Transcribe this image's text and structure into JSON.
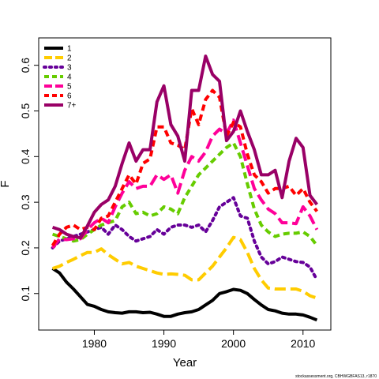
{
  "credit": "stockassessment.org, CBHWGBFAS13, r1870",
  "chart_data": {
    "type": "line",
    "xlabel": "Year",
    "ylabel": "F",
    "xlim": [
      1972,
      2014
    ],
    "ylim": [
      0.02,
      0.66
    ],
    "xticks": [
      1980,
      1990,
      2000,
      2010
    ],
    "yticks": [
      0.1,
      0.2,
      0.3,
      0.4,
      0.5,
      0.6
    ],
    "grid": false,
    "legend_position": "top-left",
    "x": [
      1974,
      1975,
      1976,
      1977,
      1978,
      1979,
      1980,
      1981,
      1982,
      1983,
      1984,
      1985,
      1986,
      1987,
      1988,
      1989,
      1990,
      1991,
      1992,
      1993,
      1994,
      1995,
      1996,
      1997,
      1998,
      1999,
      2000,
      2001,
      2002,
      2003,
      2004,
      2005,
      2006,
      2007,
      2008,
      2009,
      2010,
      2011,
      2012
    ],
    "series": [
      {
        "name": "1",
        "color": "#000000",
        "dash": "solid",
        "values": [
          0.155,
          0.145,
          0.125,
          0.11,
          0.093,
          0.076,
          0.072,
          0.065,
          0.06,
          0.058,
          0.057,
          0.06,
          0.06,
          0.058,
          0.059,
          0.055,
          0.05,
          0.05,
          0.055,
          0.058,
          0.06,
          0.065,
          0.075,
          0.085,
          0.1,
          0.104,
          0.109,
          0.107,
          0.1,
          0.087,
          0.075,
          0.065,
          0.062,
          0.057,
          0.055,
          0.055,
          0.053,
          0.048,
          0.042
        ]
      },
      {
        "name": "2",
        "color": "#ffcc00",
        "dash": "long",
        "values": [
          0.155,
          0.16,
          0.168,
          0.175,
          0.183,
          0.19,
          0.19,
          0.198,
          0.185,
          0.175,
          0.165,
          0.168,
          0.16,
          0.155,
          0.15,
          0.145,
          0.142,
          0.143,
          0.142,
          0.14,
          0.13,
          0.13,
          0.145,
          0.16,
          0.18,
          0.2,
          0.223,
          0.218,
          0.19,
          0.155,
          0.13,
          0.112,
          0.11,
          0.11,
          0.11,
          0.11,
          0.105,
          0.095,
          0.09
        ]
      },
      {
        "name": "3",
        "color": "#660099",
        "dash": "dot",
        "values": [
          0.2,
          0.215,
          0.22,
          0.225,
          0.23,
          0.235,
          0.24,
          0.245,
          0.23,
          0.25,
          0.24,
          0.225,
          0.215,
          0.22,
          0.225,
          0.24,
          0.23,
          0.245,
          0.25,
          0.25,
          0.245,
          0.25,
          0.235,
          0.26,
          0.29,
          0.3,
          0.31,
          0.27,
          0.265,
          0.215,
          0.18,
          0.165,
          0.17,
          0.18,
          0.175,
          0.17,
          0.168,
          0.158,
          0.13
        ]
      },
      {
        "name": "4",
        "color": "#66cc00",
        "dash": "dash",
        "values": [
          0.23,
          0.225,
          0.22,
          0.215,
          0.218,
          0.23,
          0.24,
          0.25,
          0.255,
          0.26,
          0.29,
          0.3,
          0.275,
          0.278,
          0.27,
          0.275,
          0.29,
          0.285,
          0.275,
          0.31,
          0.335,
          0.36,
          0.375,
          0.39,
          0.405,
          0.42,
          0.43,
          0.4,
          0.34,
          0.285,
          0.25,
          0.235,
          0.225,
          0.23,
          0.232,
          0.232,
          0.235,
          0.225,
          0.205
        ]
      },
      {
        "name": "5",
        "color": "#ff0099",
        "dash": "long",
        "values": [
          0.2,
          0.22,
          0.218,
          0.22,
          0.22,
          0.24,
          0.255,
          0.265,
          0.255,
          0.29,
          0.32,
          0.345,
          0.33,
          0.335,
          0.335,
          0.36,
          0.35,
          0.36,
          0.32,
          0.37,
          0.4,
          0.39,
          0.41,
          0.445,
          0.46,
          0.45,
          0.48,
          0.43,
          0.38,
          0.33,
          0.305,
          0.285,
          0.275,
          0.255,
          0.255,
          0.253,
          0.29,
          0.27,
          0.24
        ]
      },
      {
        "name": "6",
        "color": "#ff0000",
        "dash": "dash",
        "values": [
          0.205,
          0.23,
          0.245,
          0.25,
          0.24,
          0.245,
          0.24,
          0.265,
          0.27,
          0.3,
          0.33,
          0.36,
          0.34,
          0.385,
          0.395,
          0.465,
          0.465,
          0.43,
          0.425,
          0.415,
          0.505,
          0.47,
          0.525,
          0.545,
          0.53,
          0.445,
          0.475,
          0.465,
          0.405,
          0.36,
          0.345,
          0.32,
          0.33,
          0.33,
          0.335,
          0.315,
          0.33,
          0.3,
          0.28
        ]
      },
      {
        "name": "7+",
        "color": "#990066",
        "dash": "solid",
        "values": [
          0.245,
          0.24,
          0.23,
          0.225,
          0.222,
          0.248,
          0.278,
          0.295,
          0.305,
          0.335,
          0.385,
          0.43,
          0.39,
          0.415,
          0.415,
          0.52,
          0.555,
          0.47,
          0.445,
          0.39,
          0.545,
          0.545,
          0.62,
          0.58,
          0.565,
          0.435,
          0.455,
          0.5,
          0.455,
          0.415,
          0.36,
          0.36,
          0.37,
          0.31,
          0.39,
          0.44,
          0.42,
          0.315,
          0.295
        ]
      }
    ]
  }
}
